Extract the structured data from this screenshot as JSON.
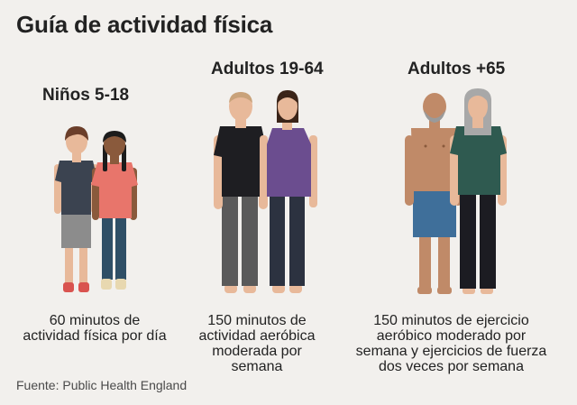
{
  "title": "Guía de actividad física",
  "groups": [
    {
      "label": "Niños 5-18",
      "description_lines": [
        "60 minutos de",
        "actividad física por día"
      ]
    },
    {
      "label": "Adultos 19-64",
      "description_lines": [
        "150 minutos de",
        "actividad aeróbica",
        "moderada por",
        "semana"
      ]
    },
    {
      "label": "Adultos +65",
      "description_lines": [
        "150 minutos de ejercicio",
        "aeróbico moderado por",
        "semana y ejercicios de fuerza",
        "dos veces por semana"
      ]
    }
  ],
  "source": "Fuente: Public Health England",
  "colors": {
    "background": "#f2f0ed",
    "text": "#222222",
    "skin_light": "#e8b99a",
    "skin_dark": "#8a5a3c",
    "boy_shirt": "#3b4350",
    "girl_shirt": "#e8756b",
    "adult_man_shirt": "#1e1e22",
    "adult_woman_top": "#6b4d8f",
    "senior_woman_shirt": "#2f5a50",
    "senior_man_shorts": "#3f6f9a"
  }
}
